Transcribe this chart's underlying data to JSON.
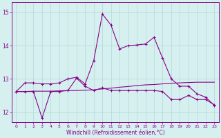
{
  "xlabel": "Windchill (Refroidissement éolien,°C)",
  "xlim": [
    -0.5,
    23.5
  ],
  "ylim": [
    11.7,
    15.3
  ],
  "yticks": [
    12,
    13,
    14,
    15
  ],
  "xticks": [
    0,
    1,
    2,
    3,
    4,
    5,
    6,
    7,
    8,
    9,
    10,
    11,
    12,
    13,
    14,
    15,
    16,
    17,
    18,
    19,
    20,
    21,
    22,
    23
  ],
  "bg_color": "#d6f0ef",
  "line_color": "#880088",
  "grid_color": "#b0d8d8",
  "line1_x": [
    0,
    1,
    2,
    3,
    4,
    5,
    6,
    7,
    8,
    9,
    10,
    11,
    12,
    13,
    14,
    15,
    16,
    17,
    18,
    19,
    20,
    21,
    22,
    23
  ],
  "line1_y": [
    12.62,
    12.88,
    12.88,
    12.85,
    12.85,
    12.88,
    13.0,
    13.05,
    12.85,
    13.55,
    14.95,
    14.62,
    13.9,
    14.0,
    14.02,
    14.05,
    14.25,
    13.62,
    13.0,
    12.78,
    12.78,
    12.55,
    12.45,
    12.2
  ],
  "line2_x": [
    0,
    1,
    2,
    3,
    4,
    5,
    6,
    7,
    8,
    9,
    10,
    11,
    12,
    13,
    14,
    15,
    16,
    17,
    18,
    19,
    20,
    21,
    22,
    23
  ],
  "line2_y": [
    12.62,
    12.62,
    12.63,
    12.63,
    12.63,
    12.64,
    12.65,
    12.65,
    12.66,
    12.67,
    12.7,
    12.72,
    12.75,
    12.77,
    12.8,
    12.82,
    12.83,
    12.85,
    12.87,
    12.88,
    12.89,
    12.9,
    12.9,
    12.9
  ],
  "line3_x": [
    0,
    1,
    2,
    3,
    4,
    5,
    6,
    7,
    8,
    9,
    10,
    11,
    12,
    13,
    14,
    15,
    16,
    17,
    18,
    19,
    20,
    21,
    22,
    23
  ],
  "line3_y": [
    12.62,
    12.62,
    12.62,
    11.82,
    12.62,
    12.62,
    12.65,
    13.02,
    12.78,
    12.65,
    12.73,
    12.65,
    12.65,
    12.65,
    12.65,
    12.65,
    12.65,
    12.62,
    12.38,
    12.38,
    12.5,
    12.38,
    12.38,
    12.22
  ]
}
